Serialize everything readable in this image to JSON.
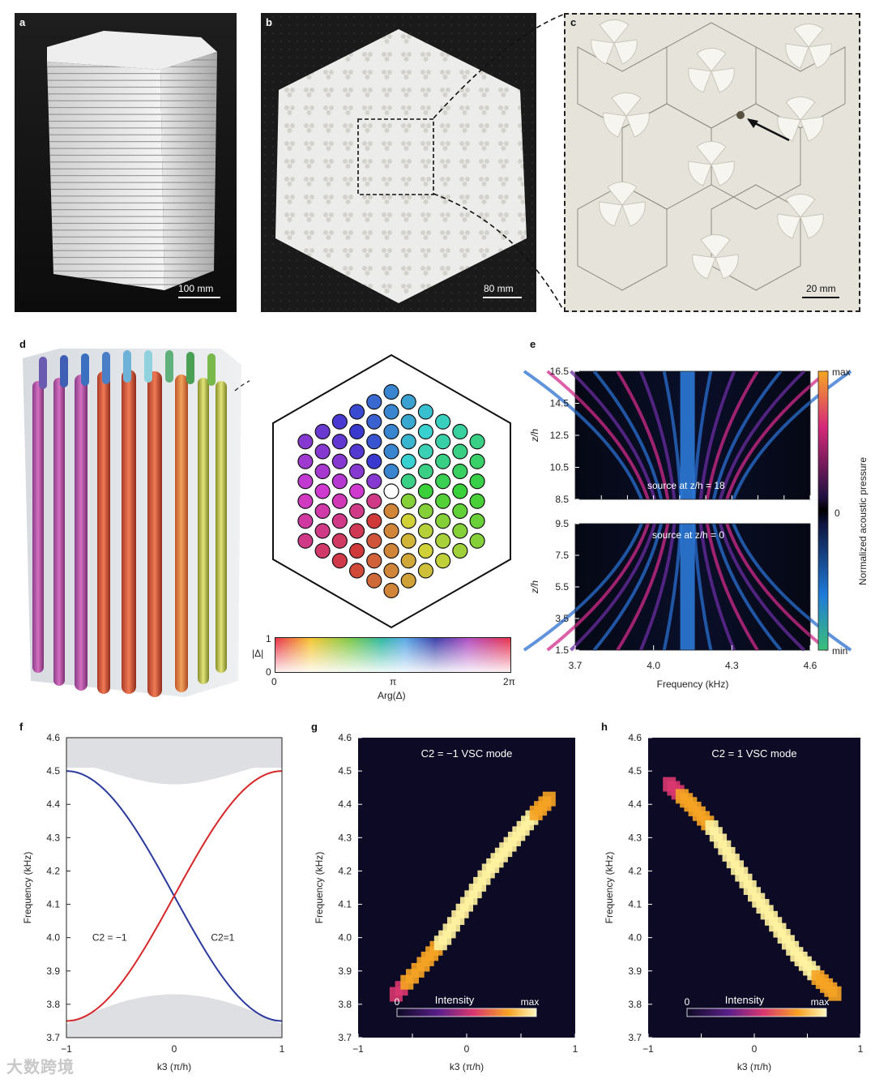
{
  "panels": {
    "a": {
      "label": "a",
      "scale": "100 mm"
    },
    "b": {
      "label": "b",
      "scale": "80 mm"
    },
    "c": {
      "label": "c",
      "scale": "20 mm"
    },
    "d": {
      "label": "d",
      "colorbar": {
        "ylabel": "|Δ|",
        "y_top": "1",
        "y_bottom": "0",
        "x_ticks": [
          "0",
          "π",
          "2π"
        ],
        "xlabel": "Arg(Δ)"
      }
    },
    "e": {
      "label": "e"
    },
    "f": {
      "label": "f"
    },
    "g": {
      "label": "g"
    },
    "h": {
      "label": "h"
    }
  },
  "watermark": "大数跨境",
  "chart_data": [
    {
      "id": "e-top",
      "type": "heatmap",
      "ylabel": "z/h",
      "y_ticks": [
        "16.5",
        "14.5",
        "12.5",
        "10.5",
        "8.5"
      ],
      "ylim": [
        8.5,
        16.5
      ],
      "annotation": "source at z/h = 18"
    },
    {
      "id": "e-bottom",
      "type": "heatmap",
      "ylabel": "z/h",
      "y_ticks": [
        "9.5",
        "7.5",
        "5.5",
        "3.5",
        "1.5"
      ],
      "ylim": [
        1.5,
        9.5
      ],
      "annotation": "source at z/h = 0",
      "xlabel": "Frequency (kHz)",
      "x_ticks": [
        "3.7",
        "4.0",
        "4.3",
        "4.6"
      ],
      "xlim": [
        3.7,
        4.6
      ],
      "colorbar": {
        "label": "Normalized acoustic pressure",
        "top": "max",
        "mid": "0",
        "bottom": "min"
      }
    },
    {
      "id": "f",
      "type": "line",
      "xlabel": "k3 (π/h)",
      "ylabel": "Frequency (kHz)",
      "xlim": [
        -1,
        1
      ],
      "ylim": [
        3.7,
        4.6
      ],
      "x_ticks": [
        "−1",
        "0",
        "1"
      ],
      "y_ticks": [
        "3.7",
        "3.8",
        "3.9",
        "4.0",
        "4.1",
        "4.2",
        "4.3",
        "4.4",
        "4.5",
        "4.6"
      ],
      "series": [
        {
          "name": "C2 = −1",
          "color": "#2b3a9c",
          "x": [
            -1,
            -0.5,
            0,
            0.5,
            1
          ],
          "y": [
            4.5,
            4.37,
            4.125,
            3.88,
            3.75
          ]
        },
        {
          "name": "C2=1",
          "color": "#d62728",
          "x": [
            -1,
            -0.5,
            0,
            0.5,
            1
          ],
          "y": [
            3.75,
            3.88,
            4.125,
            4.37,
            4.5
          ]
        }
      ],
      "labels": [
        "C2 = −1",
        "C2=1"
      ]
    },
    {
      "id": "g",
      "type": "heatmap",
      "title": "C2 = −1 VSC mode",
      "xlabel": "k3 (π/h)",
      "ylabel": "Frequency (kHz)",
      "xlim": [
        -1,
        1
      ],
      "ylim": [
        3.7,
        4.6
      ],
      "x_ticks": [
        "−1",
        "0",
        "1"
      ],
      "y_ticks": [
        "3.7",
        "3.8",
        "3.9",
        "4.0",
        "4.1",
        "4.2",
        "4.3",
        "4.4",
        "4.5",
        "4.6"
      ],
      "ridge": {
        "k3": [
          -0.65,
          -0.4,
          -0.2,
          0,
          0.2,
          0.4,
          0.6,
          0.8
        ],
        "freq": [
          3.83,
          3.92,
          4.0,
          4.1,
          4.2,
          4.28,
          4.36,
          4.43
        ]
      },
      "colorbar": {
        "label": "Intensity",
        "min": "0",
        "max": "max"
      }
    },
    {
      "id": "h",
      "type": "heatmap",
      "title": "C2 = 1 VSC mode",
      "xlabel": "k3 (π/h)",
      "ylabel": "Frequency (kHz)",
      "xlim": [
        -1,
        1
      ],
      "ylim": [
        3.7,
        4.6
      ],
      "x_ticks": [
        "−1",
        "0",
        "1"
      ],
      "y_ticks": [
        "3.7",
        "3.8",
        "3.9",
        "4.0",
        "4.1",
        "4.2",
        "4.3",
        "4.4",
        "4.5",
        "4.6"
      ],
      "ridge": {
        "k3": [
          -0.8,
          -0.6,
          -0.4,
          -0.2,
          0,
          0.2,
          0.4,
          0.6,
          0.8
        ],
        "freq": [
          4.46,
          4.4,
          4.33,
          4.23,
          4.13,
          4.04,
          3.95,
          3.88,
          3.82
        ]
      },
      "colorbar": {
        "label": "Intensity",
        "min": "0",
        "max": "max"
      }
    }
  ]
}
